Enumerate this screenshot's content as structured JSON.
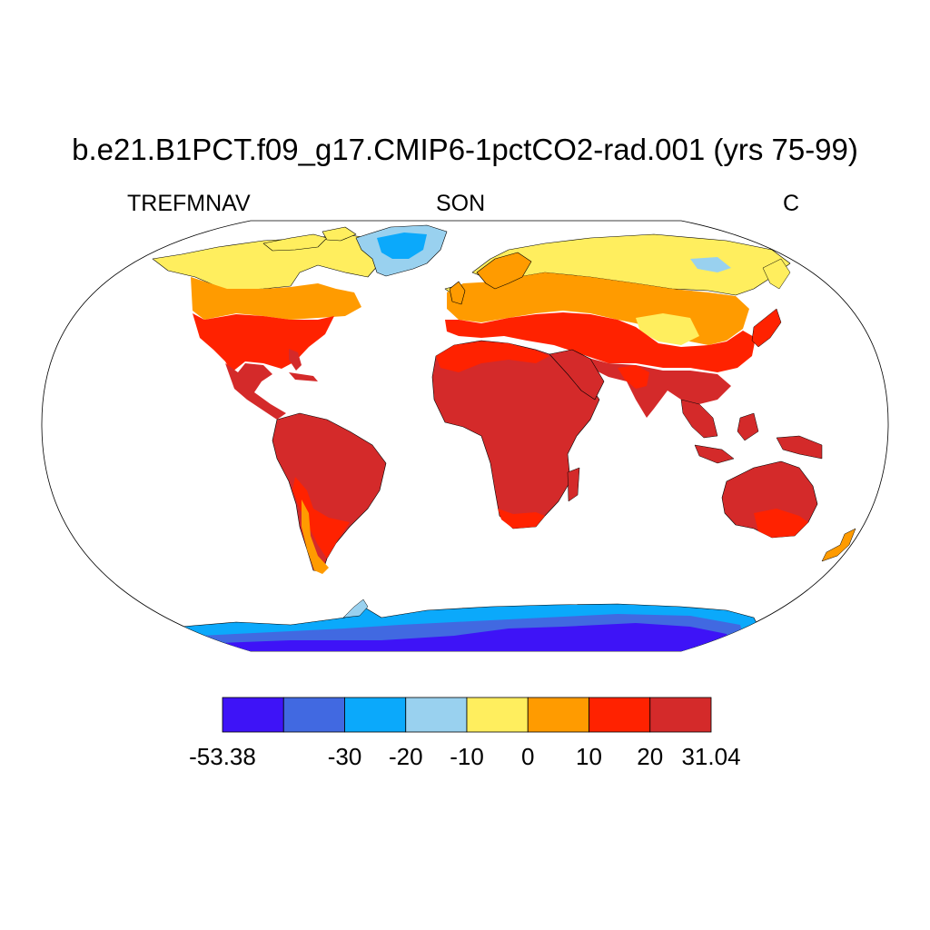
{
  "title": "b.e21.B1PCT.f09_g17.CMIP6-1pctCO2-rad.001 (yrs 75-99)",
  "left_label": "TREFMNAV",
  "center_label": "SON",
  "right_label": "C",
  "map": {
    "projection": "Robinson",
    "background": "#ffffff",
    "land_only": true,
    "coastlines": true
  },
  "colorbar": {
    "colors": [
      "#3e13f7",
      "#4169e1",
      "#0ba9fb",
      "#99d1ef",
      "#ffee5e",
      "#ff9b00",
      "#ff2200",
      "#d42a2a"
    ],
    "labels": [
      {
        "text": "-53.38",
        "boundary": 0
      },
      {
        "text": "-30",
        "boundary": 2
      },
      {
        "text": "-20",
        "boundary": 3
      },
      {
        "text": "-10",
        "boundary": 4
      },
      {
        "text": "0",
        "boundary": 5
      },
      {
        "text": "10",
        "boundary": 6
      },
      {
        "text": "20",
        "boundary": 7
      },
      {
        "text": "31.04",
        "boundary": 8
      }
    ]
  }
}
